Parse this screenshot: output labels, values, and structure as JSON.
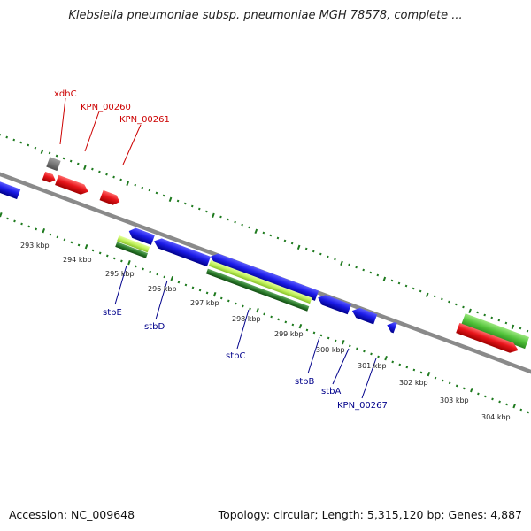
{
  "title": "Klebsiella pneumoniae subsp. pneumoniae MGH 78578, complete ...",
  "footer": {
    "accession": "Accession: NC_009648",
    "summary": "Topology: circular; Length: 5,315,120 bp; Genes: 4,887"
  },
  "colors": {
    "backbone": "#8a8a8a",
    "ruler": "#1e7a1e",
    "forward_gene": "#e8151b",
    "reverse_gene": "#1c1ce8",
    "pseudo_gene": "#707070",
    "light_green": "#bff05a",
    "mid_green": "#52c23a",
    "dark_green": "#2b7a2b",
    "forward_label": "#cc0000",
    "reverse_label": "#00008b",
    "kbp_label": "#222222"
  },
  "kbp_labels": [
    "293 kbp",
    "294 kbp",
    "295 kbp",
    "296 kbp",
    "297 kbp",
    "298 kbp",
    "299 kbp",
    "300 kbp",
    "301 kbp",
    "302 kbp",
    "303 kbp",
    "304 kbp"
  ],
  "forward_gene_labels": [
    "xdhC",
    "KPN_00260",
    "KPN_00261"
  ],
  "reverse_gene_labels": [
    "stbE",
    "stbD",
    "stbC",
    "stbB",
    "stbA",
    "KPN_00267"
  ]
}
